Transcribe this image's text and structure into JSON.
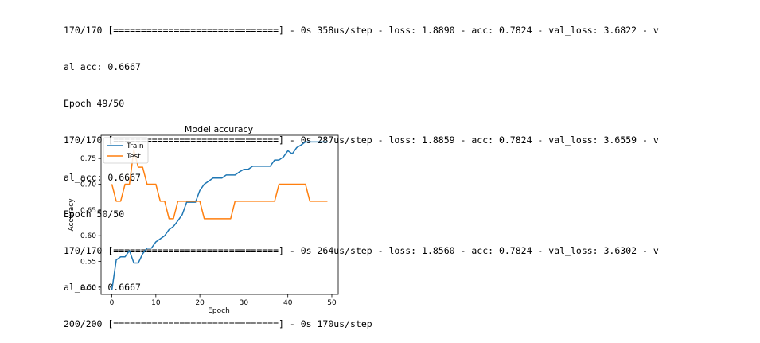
{
  "console": {
    "lines": [
      "170/170 [==============================] - 0s 358us/step - loss: 1.8890 - acc: 0.7824 - val_loss: 3.6822 - v",
      "al_acc: 0.6667",
      "Epoch 49/50",
      "170/170 [==============================] - 0s 287us/step - loss: 1.8859 - acc: 0.7824 - val_loss: 3.6559 - v",
      "al_acc: 0.6667",
      "Epoch 50/50",
      "170/170 [==============================] - 0s 264us/step - loss: 1.8560 - acc: 0.7824 - val_loss: 3.6302 - v",
      "al_acc: 0.6667",
      "200/200 [==============================] - 0s 170us/step"
    ]
  },
  "chart_data": {
    "type": "line",
    "title": "Model accuracy",
    "xlabel": "Epoch",
    "ylabel": "Accuracy",
    "xlim": [
      -2.45,
      51.45
    ],
    "ylim": [
      0.486,
      0.795
    ],
    "xticks": [
      0,
      10,
      20,
      30,
      40,
      50
    ],
    "yticks": [
      0.5,
      0.55,
      0.6,
      0.65,
      0.7,
      0.75
    ],
    "ytick_labels": [
      "0.50",
      "0.55",
      "0.60",
      "0.65",
      "0.70",
      "0.75"
    ],
    "grid": false,
    "legend": "upper left",
    "x": [
      0,
      1,
      2,
      3,
      4,
      5,
      6,
      7,
      8,
      9,
      10,
      11,
      12,
      13,
      14,
      15,
      16,
      17,
      18,
      19,
      20,
      21,
      22,
      23,
      24,
      25,
      26,
      27,
      28,
      29,
      30,
      31,
      32,
      33,
      34,
      35,
      36,
      37,
      38,
      39,
      40,
      41,
      42,
      43,
      44,
      45,
      46,
      47,
      48,
      49
    ],
    "series": [
      {
        "name": "Train",
        "color": "#1f77b4",
        "values": [
          0.494,
          0.553,
          0.559,
          0.559,
          0.571,
          0.547,
          0.547,
          0.565,
          0.576,
          0.576,
          0.588,
          0.594,
          0.6,
          0.612,
          0.618,
          0.629,
          0.641,
          0.665,
          0.665,
          0.665,
          0.688,
          0.7,
          0.706,
          0.712,
          0.712,
          0.712,
          0.718,
          0.718,
          0.718,
          0.724,
          0.729,
          0.729,
          0.735,
          0.735,
          0.735,
          0.735,
          0.735,
          0.747,
          0.747,
          0.753,
          0.765,
          0.759,
          0.771,
          0.776,
          0.782,
          0.782,
          0.782,
          0.782,
          0.782,
          0.782
        ]
      },
      {
        "name": "Test",
        "color": "#ff7f0e",
        "values": [
          0.7,
          0.667,
          0.667,
          0.7,
          0.7,
          0.767,
          0.733,
          0.733,
          0.7,
          0.7,
          0.7,
          0.667,
          0.667,
          0.633,
          0.633,
          0.667,
          0.667,
          0.667,
          0.667,
          0.667,
          0.667,
          0.633,
          0.633,
          0.633,
          0.633,
          0.633,
          0.633,
          0.633,
          0.667,
          0.667,
          0.667,
          0.667,
          0.667,
          0.667,
          0.667,
          0.667,
          0.667,
          0.667,
          0.7,
          0.7,
          0.7,
          0.7,
          0.7,
          0.7,
          0.7,
          0.667,
          0.667,
          0.667,
          0.667,
          0.667
        ]
      }
    ]
  }
}
